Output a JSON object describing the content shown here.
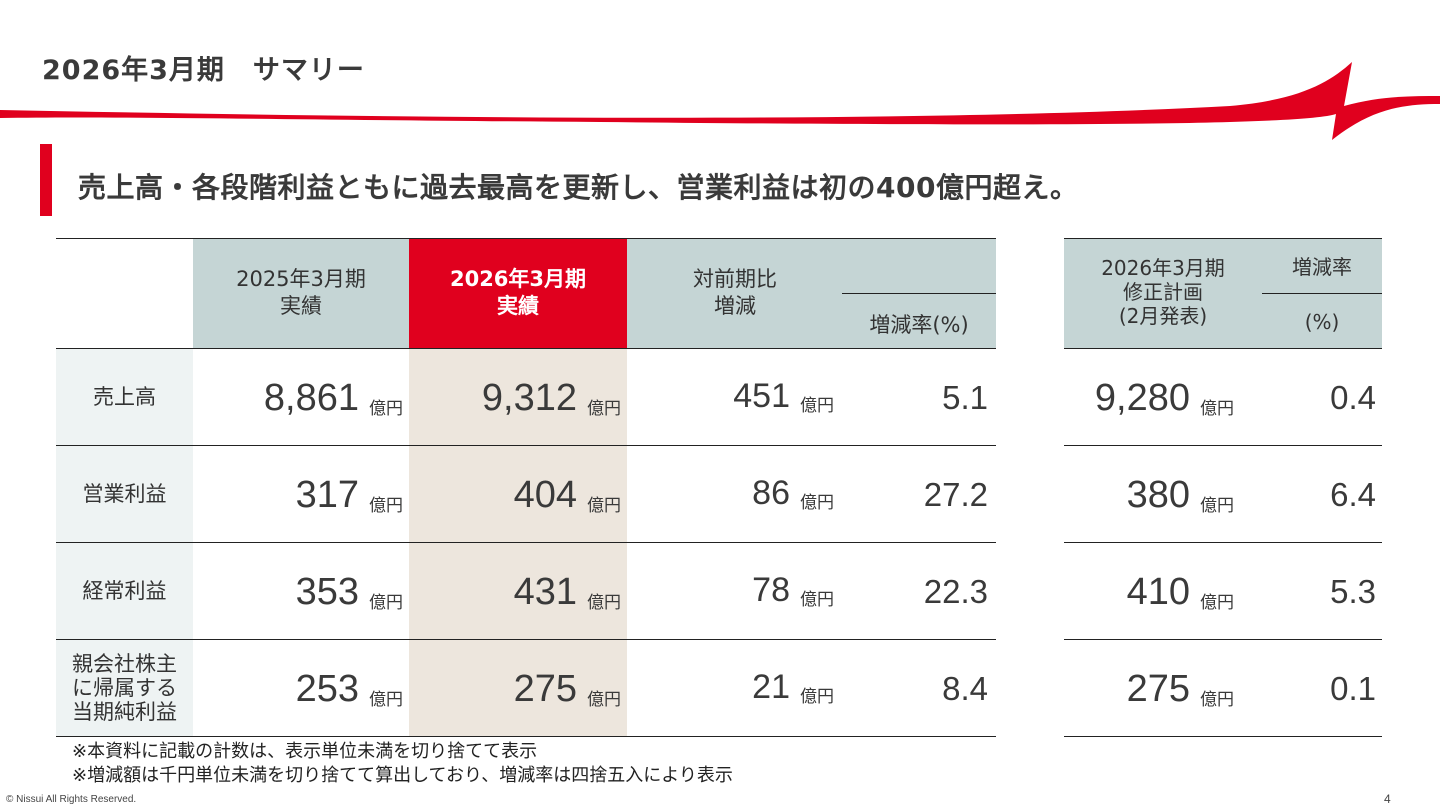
{
  "title": "2026年3月期　サマリー",
  "headline": "売上高・各段階利益ともに過去最高を更新し、営業利益は初の400億円超え。",
  "colors": {
    "brand_red": "#e0001e",
    "header_bg": "#c5d5d5",
    "highlight_col": "#ede6dd",
    "label_bg": "#eef3f3"
  },
  "table": {
    "col_prev_line1": "2025年3月期",
    "col_prev_line2": "実績",
    "col_curr_line1": "2026年3月期",
    "col_curr_line2": "実績",
    "col_diff_line1": "対前期比",
    "col_diff_line2": "増減",
    "col_rate": "増減率(%)",
    "unit": "億円",
    "rows": [
      {
        "label": "売上高",
        "prev": "8,861",
        "curr": "9,312",
        "diff": "451",
        "rate": "5.1"
      },
      {
        "label": "営業利益",
        "prev": "317",
        "curr": "404",
        "diff": "86",
        "rate": "27.2"
      },
      {
        "label": "経常利益",
        "prev": "353",
        "curr": "431",
        "diff": "78",
        "rate": "22.3"
      },
      {
        "label_line1": "親会社株主",
        "label_line2": "に帰属する",
        "label_line3": "当期純利益",
        "prev": "253",
        "curr": "275",
        "diff": "21",
        "rate": "8.4"
      }
    ]
  },
  "plan": {
    "col_line1": "2026年3月期",
    "col_line2": "修正計画",
    "col_line3": "(2月発表)",
    "rate_line1": "増減率",
    "rate_line2": "(%)",
    "rows": [
      {
        "value": "9,280",
        "rate": "0.4"
      },
      {
        "value": "380",
        "rate": "6.4"
      },
      {
        "value": "410",
        "rate": "5.3"
      },
      {
        "value": "275",
        "rate": "0.1"
      }
    ]
  },
  "notes": [
    "※本資料に記載の計数は、表示単位未満を切り捨てて表示",
    "※増減額は千円単位未満を切り捨てて算出しており、増減率は四捨五入により表示"
  ],
  "footer": "© Nissui All Rights Reserved.",
  "page_number": "4"
}
